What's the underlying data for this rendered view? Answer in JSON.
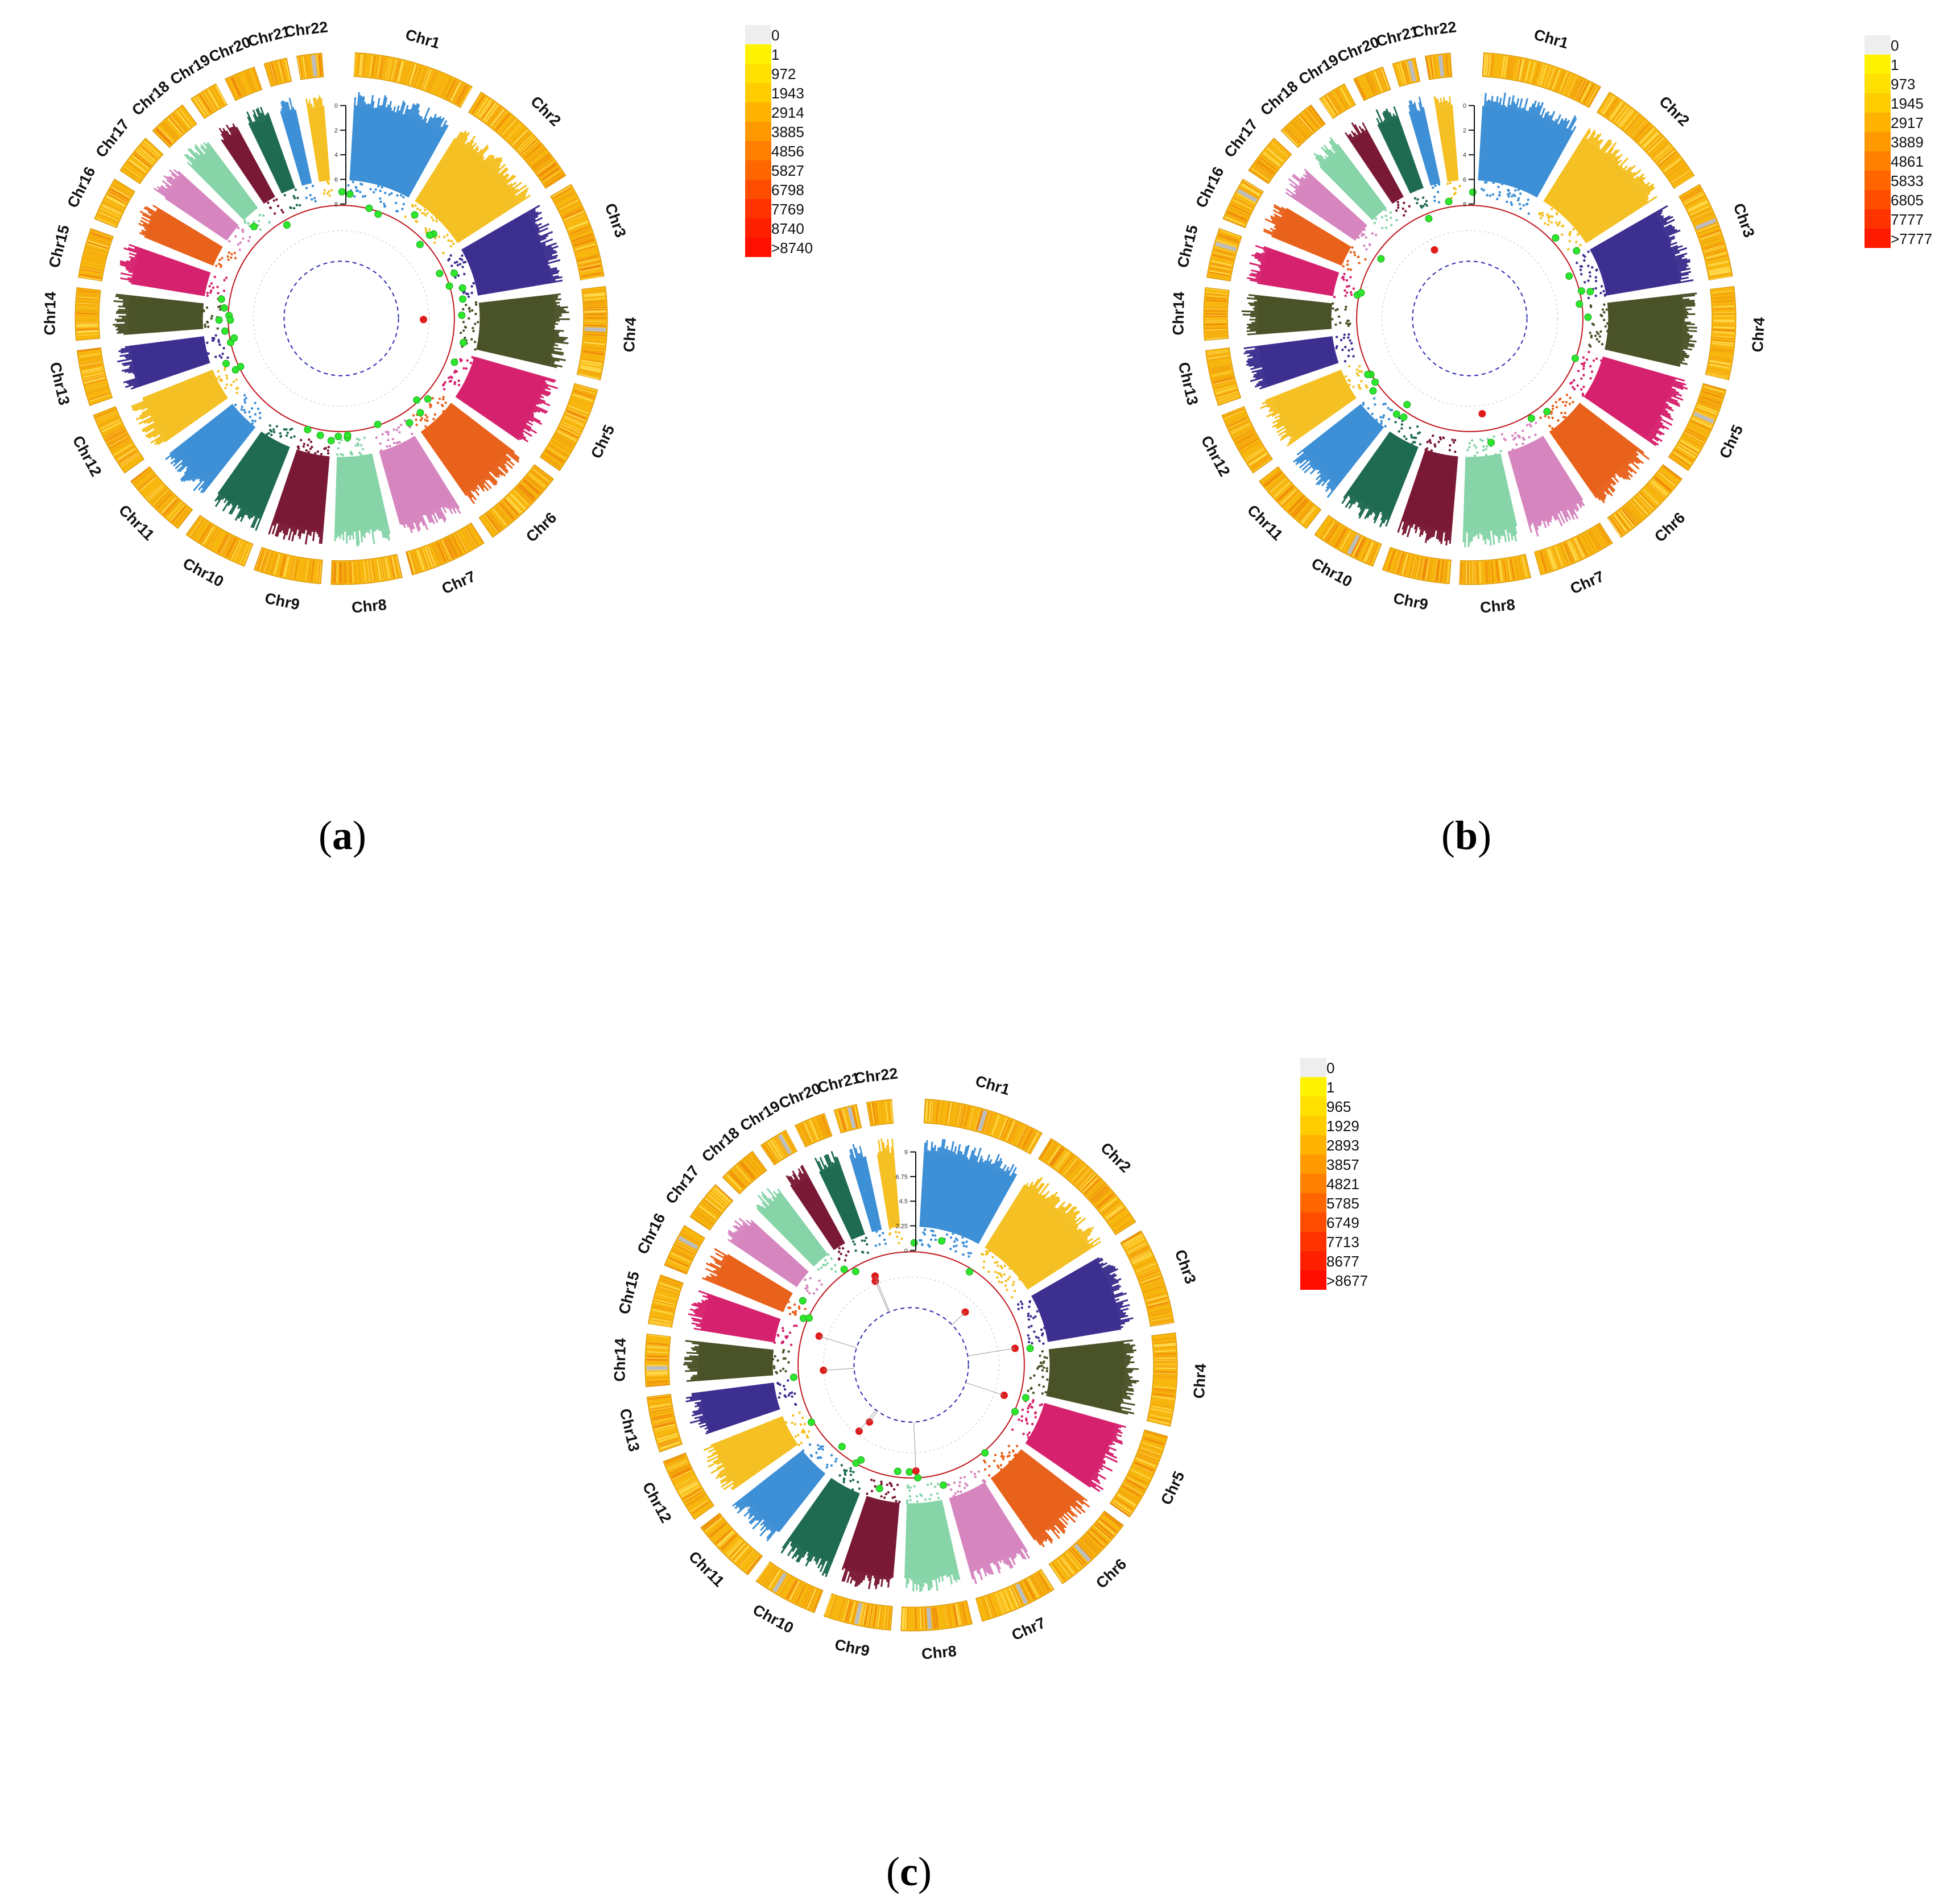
{
  "chart_data": [
    {
      "type": "circular_manhattan",
      "panel": "a",
      "caption": {
        "open": "(",
        "letter": "a",
        "close": ")"
      },
      "chromosomes": [
        "Chr1",
        "Chr2",
        "Chr3",
        "Chr4",
        "Chr5",
        "Chr6",
        "Chr7",
        "Chr8",
        "Chr9",
        "Chr10",
        "Chr11",
        "Chr12",
        "Chr13",
        "Chr14",
        "Chr15",
        "Chr16",
        "Chr17",
        "Chr18",
        "Chr19",
        "Chr20",
        "Chr21",
        "Chr22"
      ],
      "axis_ticks": [
        "0",
        "2",
        "4",
        "6",
        "8"
      ],
      "legend": [
        {
          "label": "0",
          "color": "#eeeeee"
        },
        {
          "label": "1",
          "color": "#fff200"
        },
        {
          "label": "972",
          "color": "#ffe000"
        },
        {
          "label": "1943",
          "color": "#ffcc00"
        },
        {
          "label": "2914",
          "color": "#ffb300"
        },
        {
          "label": "3885",
          "color": "#ff9900"
        },
        {
          "label": "4856",
          "color": "#ff8000"
        },
        {
          "label": "5827",
          "color": "#ff6600"
        },
        {
          "label": "6798",
          "color": "#ff4d00"
        },
        {
          "label": "7769",
          "color": "#ff3300"
        },
        {
          "label": "8740",
          "color": "#ff2000"
        },
        {
          "label": ">8740",
          "color": "#ff1000"
        }
      ],
      "highlight_points": {
        "green": 40,
        "red": 1
      }
    },
    {
      "type": "circular_manhattan",
      "panel": "b",
      "caption": {
        "open": "(",
        "letter": "b",
        "close": ")"
      },
      "chromosomes": [
        "Chr1",
        "Chr2",
        "Chr3",
        "Chr4",
        "Chr5",
        "Chr6",
        "Chr7",
        "Chr8",
        "Chr9",
        "Chr10",
        "Chr11",
        "Chr12",
        "Chr13",
        "Chr14",
        "Chr15",
        "Chr16",
        "Chr17",
        "Chr18",
        "Chr19",
        "Chr20",
        "Chr21",
        "Chr22"
      ],
      "axis_ticks": [
        "0",
        "2",
        "4",
        "6",
        "8"
      ],
      "legend": [
        {
          "label": "0",
          "color": "#eeeeee"
        },
        {
          "label": "1",
          "color": "#fff200"
        },
        {
          "label": "973",
          "color": "#ffe000"
        },
        {
          "label": "1945",
          "color": "#ffcc00"
        },
        {
          "label": "2917",
          "color": "#ffb300"
        },
        {
          "label": "3889",
          "color": "#ff9900"
        },
        {
          "label": "4861",
          "color": "#ff8000"
        },
        {
          "label": "5833",
          "color": "#ff6600"
        },
        {
          "label": "6805",
          "color": "#ff4d00"
        },
        {
          "label": "7777",
          "color": "#ff3300"
        },
        {
          "label": ">7777",
          "color": "#ff1a00"
        }
      ],
      "highlight_points": {
        "green": 24,
        "red": 2
      }
    },
    {
      "type": "circular_manhattan",
      "panel": "c",
      "caption": {
        "open": "(",
        "letter": "c",
        "close": ")"
      },
      "chromosomes": [
        "Chr1",
        "Chr2",
        "Chr3",
        "Chr4",
        "Chr5",
        "Chr6",
        "Chr7",
        "Chr8",
        "Chr9",
        "Chr10",
        "Chr11",
        "Chr12",
        "Chr13",
        "Chr14",
        "Chr15",
        "Chr16",
        "Chr17",
        "Chr18",
        "Chr19",
        "Chr20",
        "Chr21",
        "Chr22"
      ],
      "axis_ticks": [
        "9",
        "6.75",
        "4.5",
        "2.25",
        "0"
      ],
      "legend": [
        {
          "label": "0",
          "color": "#eeeeee"
        },
        {
          "label": "1",
          "color": "#fff200"
        },
        {
          "label": "965",
          "color": "#ffe000"
        },
        {
          "label": "1929",
          "color": "#ffcc00"
        },
        {
          "label": "2893",
          "color": "#ffb300"
        },
        {
          "label": "3857",
          "color": "#ff9900"
        },
        {
          "label": "4821",
          "color": "#ff8000"
        },
        {
          "label": "5785",
          "color": "#ff6600"
        },
        {
          "label": "6749",
          "color": "#ff4d00"
        },
        {
          "label": "7713",
          "color": "#ff3300"
        },
        {
          "label": "8677",
          "color": "#ff2000"
        },
        {
          "label": ">8677",
          "color": "#ff0d00"
        }
      ],
      "highlight_points": {
        "green": 22,
        "red": 10
      }
    }
  ],
  "palette": [
    "#3d8fd6",
    "#f5c023",
    "#3c2f8f",
    "#4a5228",
    "#d6226e",
    "#e8621c",
    "#d685bf",
    "#86d4a8",
    "#7a1935",
    "#1f6b52"
  ]
}
